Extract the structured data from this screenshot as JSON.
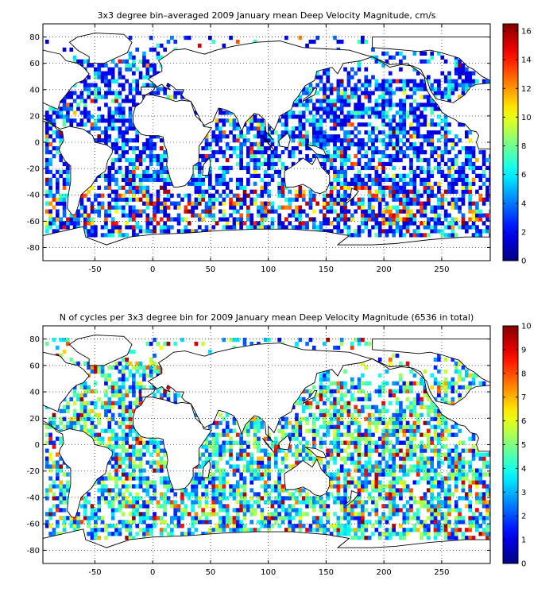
{
  "chart_data": [
    {
      "type": "heatmap",
      "title": "3x3 degree bin–averaged 2009 January mean Deep Velocity Magnitude, cm/s",
      "xlim": [
        -95,
        292
      ],
      "ylim": [
        -90,
        90
      ],
      "x_ticks": [
        -50,
        0,
        50,
        100,
        150,
        200,
        250
      ],
      "x_tick_labels": [
        "-50",
        "0",
        "50",
        "100",
        "150",
        "200",
        "250"
      ],
      "y_ticks": [
        -80,
        -60,
        -40,
        -20,
        0,
        20,
        40,
        60,
        80
      ],
      "y_tick_labels": [
        "-80",
        "-60",
        "-40",
        "-20",
        "0",
        "20",
        "40",
        "60",
        "80"
      ],
      "grid": true,
      "grid_style": "dotted",
      "bin_size_deg": 3,
      "colorbar": {
        "min": 0,
        "max": 16.5,
        "colormap": "jet",
        "ticks": [
          0,
          2,
          4,
          6,
          8,
          10,
          12,
          14,
          16
        ],
        "tick_labels": [
          "0",
          "2",
          "4",
          "6",
          "8",
          "10",
          "12",
          "14",
          "16"
        ]
      },
      "bin_note": "Per-bin values are not individually labeled in the original and are not reproduced."
    },
    {
      "type": "heatmap",
      "title": "N of cycles per 3x3 degree bin for 2009 January mean Deep Velocity Magnitude (6536 in total)",
      "xlim": [
        -95,
        292
      ],
      "ylim": [
        -90,
        90
      ],
      "x_ticks": [
        -50,
        0,
        50,
        100,
        150,
        200,
        250
      ],
      "x_tick_labels": [
        "-50",
        "0",
        "50",
        "100",
        "150",
        "200",
        "250"
      ],
      "y_ticks": [
        -80,
        -60,
        -40,
        -20,
        0,
        20,
        40,
        60,
        80
      ],
      "y_tick_labels": [
        "-80",
        "-60",
        "-40",
        "-20",
        "0",
        "20",
        "40",
        "60",
        "80"
      ],
      "grid": true,
      "grid_style": "dotted",
      "bin_size_deg": 3,
      "total_cycles": 6536,
      "colorbar": {
        "min": 0,
        "max": 10,
        "colormap": "jet",
        "ticks": [
          0,
          1,
          2,
          3,
          4,
          5,
          6,
          7,
          8,
          9,
          10
        ],
        "tick_labels": [
          "0",
          "1",
          "2",
          "3",
          "4",
          "5",
          "6",
          "7",
          "8",
          "9",
          "10"
        ]
      },
      "bin_note": "Per-bin counts are not individually labeled in the original and are not reproduced."
    }
  ]
}
